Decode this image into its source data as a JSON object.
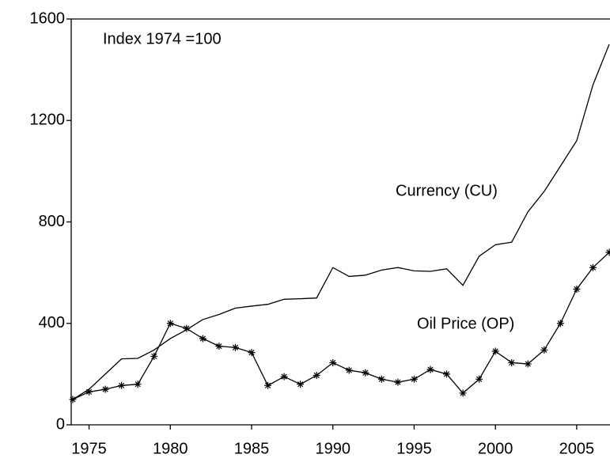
{
  "chart_data": {
    "type": "line",
    "annotations": [
      "Index 1974 =100",
      "Currency (CU)",
      "Oil Price (OP)"
    ],
    "x": [
      1974,
      1975,
      1976,
      1977,
      1978,
      1979,
      1980,
      1981,
      1982,
      1983,
      1984,
      1985,
      1986,
      1987,
      1988,
      1989,
      1990,
      1991,
      1992,
      1993,
      1994,
      1995,
      1996,
      1997,
      1998,
      1999,
      2000,
      2001,
      2002,
      2003,
      2004,
      2005,
      2006,
      2007
    ],
    "series": [
      {
        "name": "Currency (CU)",
        "color": "#000000",
        "marker": "none",
        "values": [
          100,
          140,
          200,
          260,
          262,
          295,
          340,
          375,
          415,
          435,
          460,
          468,
          475,
          495,
          497,
          500,
          620,
          585,
          590,
          610,
          620,
          607,
          605,
          615,
          550,
          665,
          710,
          720,
          840,
          920,
          1020,
          1120,
          1340,
          1500
        ]
      },
      {
        "name": "Oil Price (OP)",
        "color": "#000000",
        "marker": "star",
        "values": [
          100,
          130,
          140,
          155,
          160,
          270,
          400,
          380,
          340,
          310,
          305,
          285,
          155,
          190,
          160,
          195,
          245,
          215,
          205,
          180,
          168,
          180,
          218,
          200,
          125,
          180,
          290,
          245,
          240,
          295,
          400,
          535,
          620,
          680
        ]
      }
    ],
    "xlim": [
      1974,
      2007
    ],
    "xticks": [
      1975,
      1980,
      1985,
      1990,
      1995,
      2000,
      2005
    ],
    "ylim": [
      0,
      1600
    ],
    "yticks": [
      0,
      400,
      800,
      1200,
      1600
    ],
    "grid": false
  }
}
